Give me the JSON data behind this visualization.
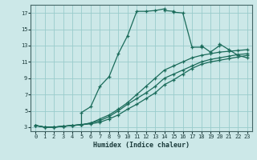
{
  "bg_color": "#cce8e8",
  "grid_color": "#99cccc",
  "line_color": "#1a6b5a",
  "xlabel": "Humidex (Indice chaleur)",
  "xlim": [
    -0.5,
    23.5
  ],
  "ylim": [
    2.5,
    18.0
  ],
  "xticks": [
    0,
    1,
    2,
    3,
    4,
    5,
    6,
    7,
    8,
    9,
    10,
    11,
    12,
    13,
    14,
    15,
    16,
    17,
    18,
    19,
    20,
    21,
    22,
    23
  ],
  "yticks": [
    3,
    5,
    7,
    9,
    11,
    13,
    15,
    17
  ],
  "curve1_x": [
    0,
    1,
    2,
    3,
    4,
    5,
    5,
    6,
    7,
    8,
    9,
    10,
    11,
    12,
    13,
    14,
    14,
    15,
    15,
    16,
    17,
    18,
    18,
    19,
    20,
    20,
    21,
    22,
    23
  ],
  "curve1_y": [
    3.2,
    3.0,
    3.0,
    3.1,
    3.2,
    3.3,
    4.8,
    5.5,
    8.0,
    9.2,
    12.0,
    14.2,
    17.2,
    17.2,
    17.3,
    17.5,
    17.3,
    17.2,
    17.1,
    17.0,
    12.8,
    12.8,
    13.0,
    12.2,
    13.0,
    13.2,
    12.5,
    11.8,
    11.5
  ],
  "curve2_x": [
    0,
    1,
    2,
    3,
    4,
    5,
    6,
    7,
    8,
    9,
    10,
    11,
    12,
    13,
    14,
    15,
    16,
    17,
    18,
    19,
    20,
    21,
    22,
    23
  ],
  "curve2_y": [
    3.2,
    3.0,
    3.0,
    3.1,
    3.2,
    3.3,
    3.5,
    4.0,
    4.5,
    5.2,
    6.0,
    7.0,
    8.0,
    9.0,
    10.0,
    10.5,
    11.0,
    11.5,
    11.8,
    12.0,
    12.2,
    12.3,
    12.4,
    12.5
  ],
  "curve3_x": [
    0,
    1,
    2,
    3,
    4,
    5,
    6,
    7,
    8,
    9,
    10,
    11,
    12,
    13,
    14,
    15,
    16,
    17,
    18,
    19,
    20,
    21,
    22,
    23
  ],
  "curve3_y": [
    3.2,
    3.0,
    3.0,
    3.1,
    3.2,
    3.3,
    3.5,
    3.8,
    4.3,
    5.0,
    5.8,
    6.5,
    7.2,
    8.0,
    9.0,
    9.5,
    10.0,
    10.5,
    11.0,
    11.3,
    11.5,
    11.7,
    11.9,
    12.0
  ],
  "curve4_x": [
    0,
    1,
    2,
    3,
    4,
    5,
    6,
    7,
    8,
    9,
    10,
    11,
    12,
    13,
    14,
    15,
    16,
    17,
    18,
    19,
    20,
    21,
    22,
    23
  ],
  "curve4_y": [
    3.2,
    3.0,
    3.0,
    3.1,
    3.2,
    3.3,
    3.4,
    3.6,
    4.0,
    4.5,
    5.2,
    5.8,
    6.5,
    7.2,
    8.2,
    8.8,
    9.5,
    10.2,
    10.7,
    11.0,
    11.2,
    11.4,
    11.6,
    11.8
  ]
}
